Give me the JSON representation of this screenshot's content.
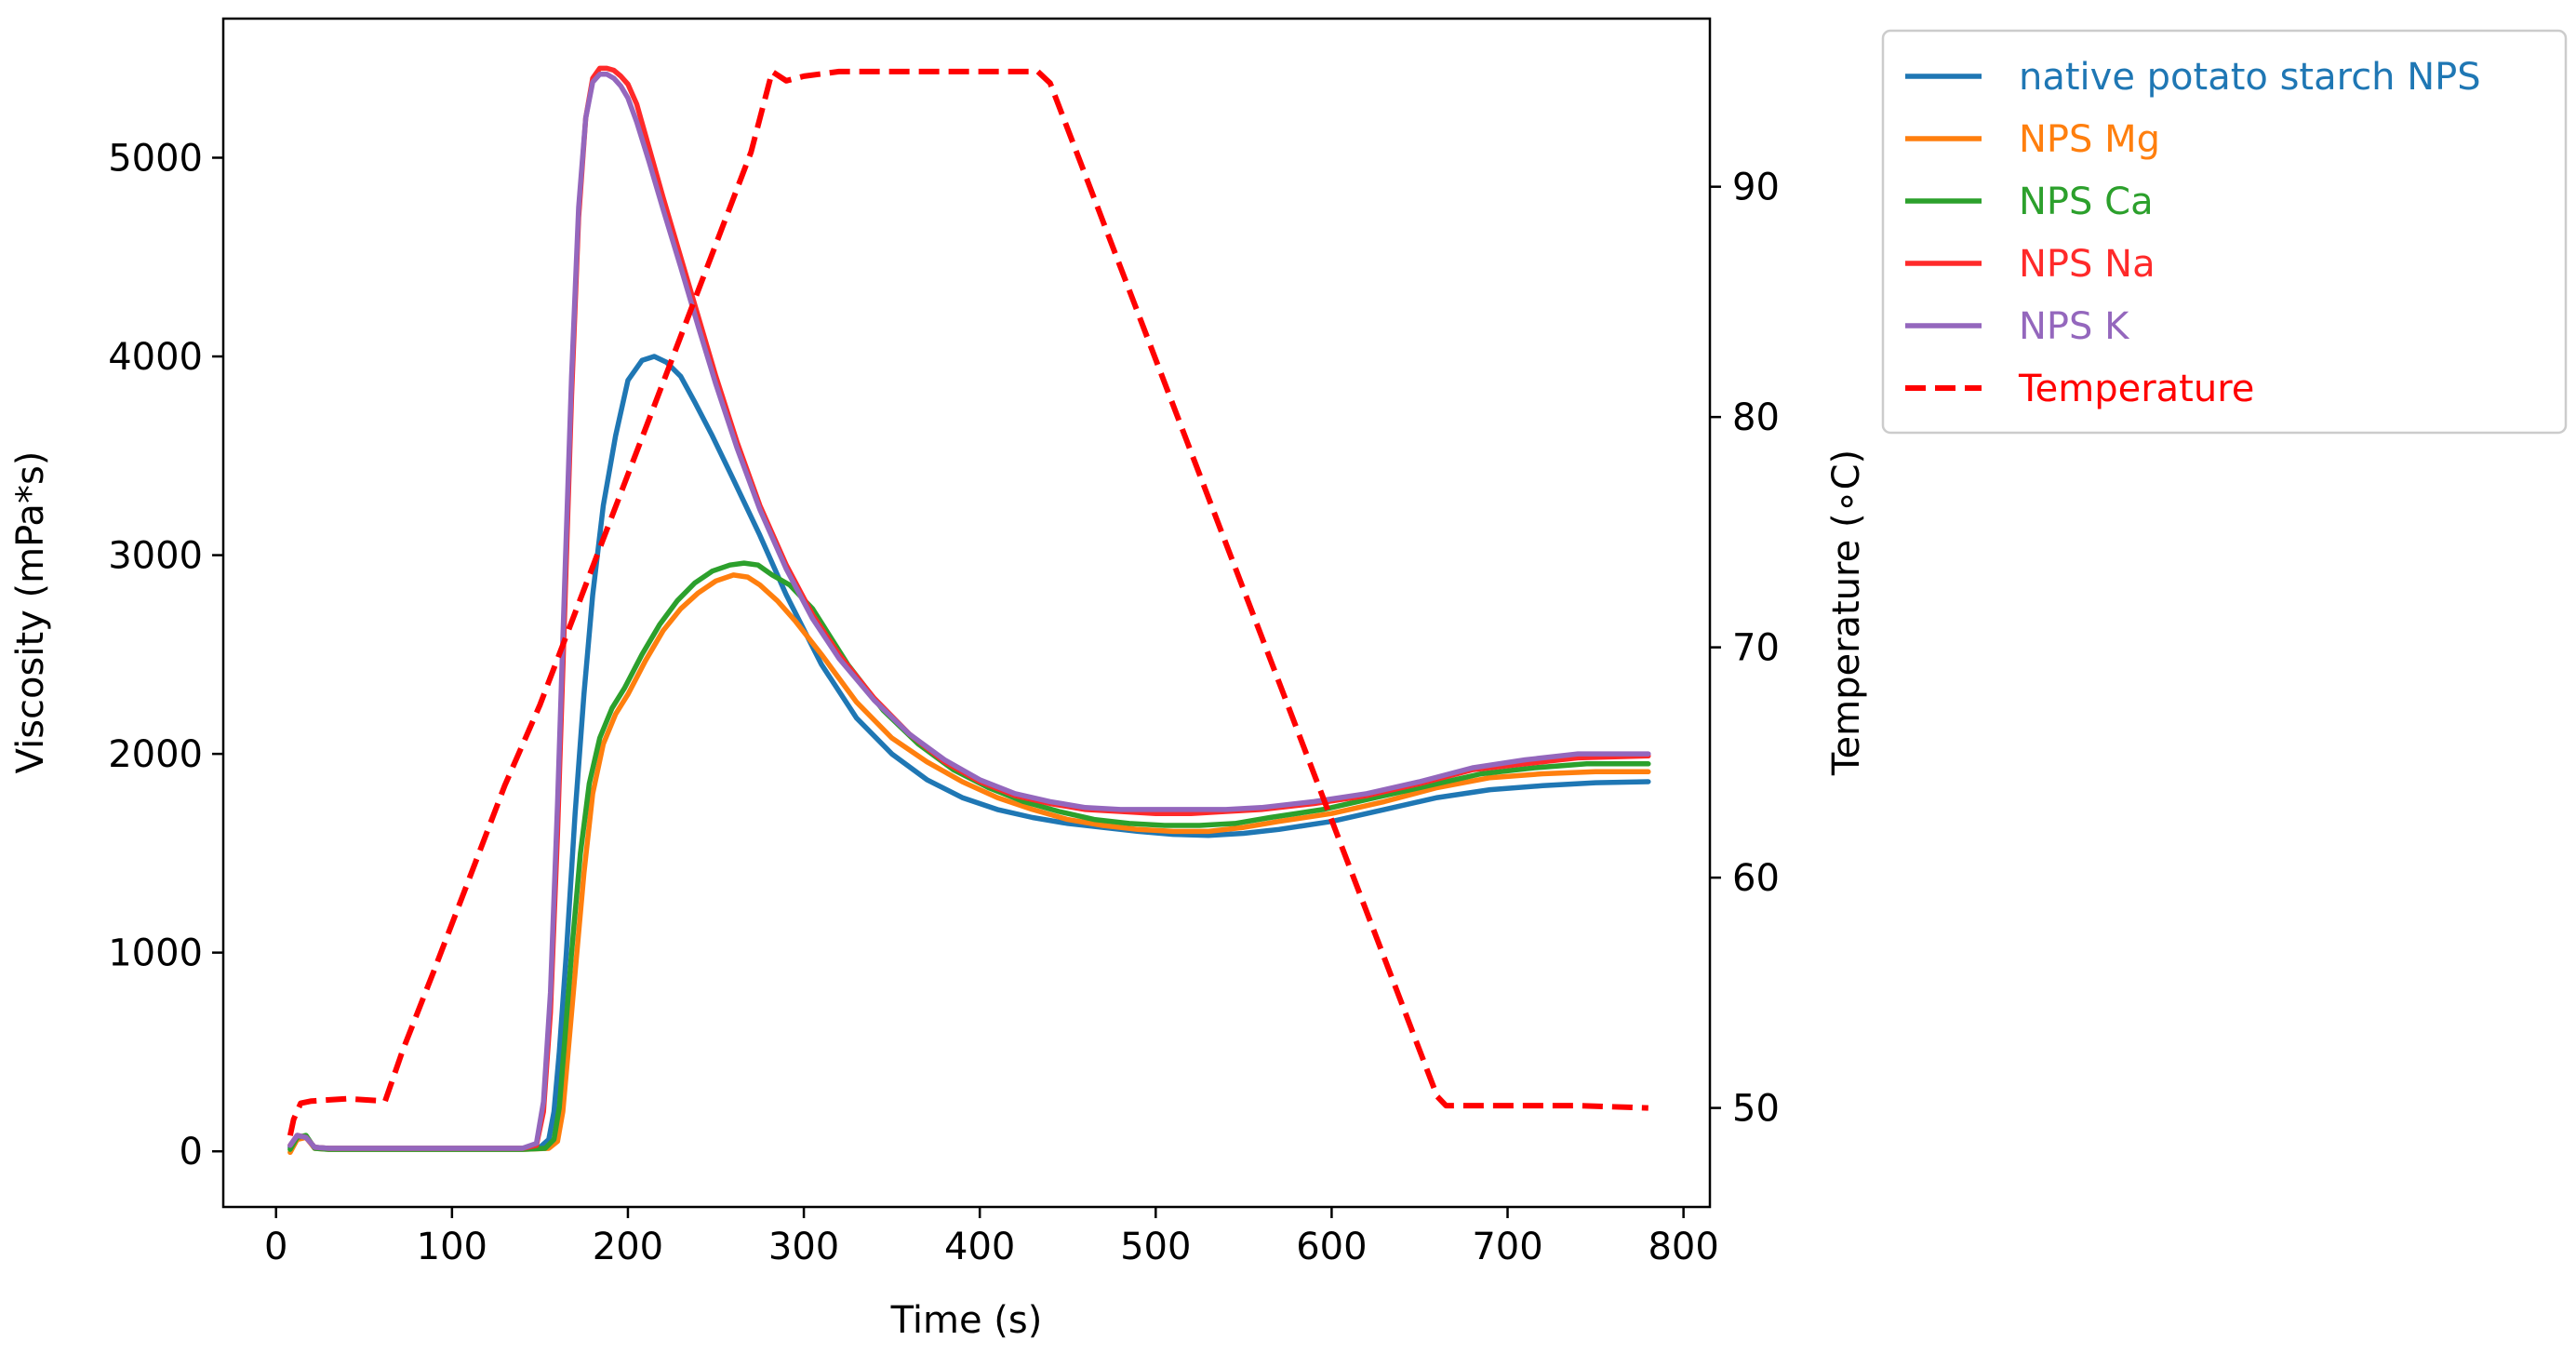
{
  "chart_data": {
    "type": "line",
    "xlabel": "Time (s)",
    "ylabel": "Viscosity (mPa*s)",
    "y2label": "Temperature (∘C)",
    "xlim": [
      -30,
      815
    ],
    "ylim": [
      -280,
      5700
    ],
    "y2lim": [
      45.7,
      97.3
    ],
    "xticks": [
      0,
      100,
      200,
      300,
      400,
      500,
      600,
      700,
      800
    ],
    "yticks": [
      0,
      1000,
      2000,
      3000,
      4000,
      5000
    ],
    "y2ticks": [
      50,
      60,
      70,
      80,
      90
    ],
    "legend_position": "outside-right-top",
    "colors": {
      "native": "#1f77b4",
      "mg": "#ff7f0e",
      "ca": "#2ca02c",
      "na": "#ff2a2a",
      "k": "#9467bd",
      "temperature": "#ff0000"
    },
    "series": [
      {
        "name": "native potato starch NPS",
        "key": "native",
        "axis": "left",
        "x": [
          8,
          12,
          17,
          22,
          30,
          60,
          100,
          140,
          150,
          155,
          158,
          161,
          165,
          170,
          175,
          180,
          186,
          193,
          200,
          208,
          215,
          222,
          230,
          238,
          248,
          260,
          275,
          290,
          310,
          330,
          350,
          370,
          390,
          410,
          430,
          450,
          470,
          490,
          510,
          530,
          550,
          570,
          600,
          630,
          660,
          690,
          720,
          750,
          780
        ],
        "y": [
          20,
          80,
          70,
          20,
          15,
          15,
          15,
          15,
          20,
          60,
          200,
          500,
          1000,
          1700,
          2300,
          2800,
          3250,
          3600,
          3880,
          3980,
          4000,
          3970,
          3900,
          3770,
          3600,
          3380,
          3100,
          2800,
          2450,
          2180,
          2000,
          1870,
          1780,
          1720,
          1680,
          1650,
          1630,
          1610,
          1595,
          1590,
          1600,
          1620,
          1660,
          1720,
          1780,
          1820,
          1840,
          1855,
          1860
        ]
      },
      {
        "name": "NPS Mg",
        "key": "mg",
        "axis": "left",
        "x": [
          8,
          12,
          17,
          22,
          30,
          60,
          100,
          140,
          155,
          160,
          163,
          166,
          170,
          175,
          180,
          186,
          193,
          200,
          210,
          220,
          230,
          240,
          250,
          260,
          268,
          275,
          285,
          295,
          310,
          330,
          350,
          370,
          390,
          410,
          430,
          450,
          470,
          490,
          510,
          530,
          550,
          570,
          600,
          630,
          660,
          690,
          720,
          750,
          780
        ],
        "y": [
          -5,
          60,
          70,
          15,
          10,
          10,
          10,
          10,
          15,
          50,
          200,
          500,
          900,
          1400,
          1800,
          2050,
          2200,
          2300,
          2470,
          2620,
          2730,
          2810,
          2870,
          2900,
          2890,
          2850,
          2770,
          2670,
          2500,
          2260,
          2080,
          1960,
          1860,
          1780,
          1720,
          1670,
          1640,
          1620,
          1610,
          1610,
          1630,
          1660,
          1700,
          1760,
          1830,
          1880,
          1900,
          1910,
          1910
        ]
      },
      {
        "name": "NPS Ca",
        "key": "ca",
        "axis": "left",
        "x": [
          8,
          12,
          17,
          22,
          30,
          60,
          100,
          140,
          153,
          158,
          161,
          164,
          168,
          173,
          178,
          184,
          191,
          198,
          208,
          218,
          228,
          238,
          248,
          258,
          266,
          274,
          282,
          292,
          305,
          325,
          345,
          365,
          385,
          405,
          425,
          445,
          465,
          485,
          505,
          525,
          545,
          565,
          595,
          625,
          655,
          685,
          715,
          745,
          780
        ],
        "y": [
          10,
          70,
          80,
          15,
          10,
          10,
          10,
          10,
          15,
          60,
          220,
          550,
          1000,
          1500,
          1850,
          2080,
          2230,
          2330,
          2500,
          2650,
          2770,
          2860,
          2920,
          2950,
          2960,
          2950,
          2900,
          2850,
          2730,
          2450,
          2220,
          2050,
          1920,
          1830,
          1760,
          1710,
          1670,
          1650,
          1640,
          1640,
          1650,
          1680,
          1720,
          1780,
          1840,
          1900,
          1930,
          1950,
          1950
        ]
      },
      {
        "name": "NPS Na",
        "key": "na",
        "axis": "left",
        "x": [
          8,
          12,
          17,
          22,
          30,
          60,
          100,
          140,
          148,
          152,
          156,
          160,
          164,
          168,
          172,
          176,
          180,
          184,
          188,
          192,
          196,
          200,
          205,
          212,
          220,
          230,
          240,
          250,
          262,
          275,
          290,
          305,
          320,
          340,
          360,
          380,
          400,
          420,
          440,
          460,
          480,
          500,
          520,
          540,
          560,
          590,
          620,
          650,
          680,
          710,
          740,
          780
        ],
        "y": [
          30,
          80,
          70,
          20,
          15,
          15,
          15,
          15,
          30,
          200,
          700,
          1600,
          2700,
          3800,
          4700,
          5200,
          5400,
          5450,
          5450,
          5440,
          5410,
          5370,
          5270,
          5050,
          4800,
          4500,
          4200,
          3900,
          3570,
          3250,
          2950,
          2700,
          2500,
          2280,
          2100,
          1960,
          1860,
          1790,
          1750,
          1720,
          1710,
          1700,
          1700,
          1710,
          1720,
          1750,
          1790,
          1850,
          1920,
          1950,
          1980,
          1990
        ]
      },
      {
        "name": "NPS K",
        "key": "k",
        "axis": "left",
        "x": [
          8,
          12,
          17,
          22,
          30,
          60,
          100,
          140,
          148,
          152,
          156,
          160,
          164,
          168,
          172,
          176,
          180,
          184,
          188,
          192,
          196,
          200,
          205,
          212,
          220,
          230,
          240,
          250,
          262,
          275,
          290,
          305,
          320,
          340,
          360,
          380,
          400,
          420,
          440,
          460,
          480,
          500,
          520,
          540,
          560,
          590,
          620,
          650,
          680,
          710,
          740,
          780
        ],
        "y": [
          30,
          80,
          70,
          20,
          15,
          15,
          15,
          15,
          40,
          250,
          800,
          1750,
          2850,
          3900,
          4750,
          5200,
          5380,
          5420,
          5420,
          5400,
          5360,
          5300,
          5180,
          4980,
          4740,
          4450,
          4150,
          3860,
          3540,
          3230,
          2930,
          2680,
          2480,
          2270,
          2100,
          1970,
          1870,
          1800,
          1760,
          1730,
          1720,
          1720,
          1720,
          1720,
          1730,
          1760,
          1800,
          1860,
          1930,
          1970,
          2000,
          2000
        ]
      },
      {
        "name": "Temperature",
        "key": "temperature",
        "axis": "right",
        "dashed": true,
        "x": [
          8,
          10,
          14,
          20,
          40,
          62,
          72,
          90,
          110,
          130,
          150,
          170,
          190,
          210,
          230,
          250,
          270,
          282,
          290,
          300,
          320,
          360,
          400,
          433,
          440,
          460,
          480,
          500,
          520,
          540,
          560,
          580,
          600,
          620,
          640,
          660,
          665,
          700,
          740,
          780
        ],
        "y": [
          48.8,
          49.5,
          50.2,
          50.3,
          50.4,
          50.3,
          52.5,
          56.0,
          60.0,
          64.0,
          67.5,
          71.5,
          75.5,
          79.5,
          83.5,
          87.5,
          91.5,
          95.0,
          94.6,
          94.8,
          95.0,
          95.0,
          95.0,
          95.0,
          94.5,
          90.5,
          86.5,
          82.5,
          78.5,
          74.5,
          70.5,
          66.5,
          62.5,
          58.5,
          54.5,
          50.5,
          50.1,
          50.1,
          50.1,
          50.0
        ]
      }
    ]
  }
}
